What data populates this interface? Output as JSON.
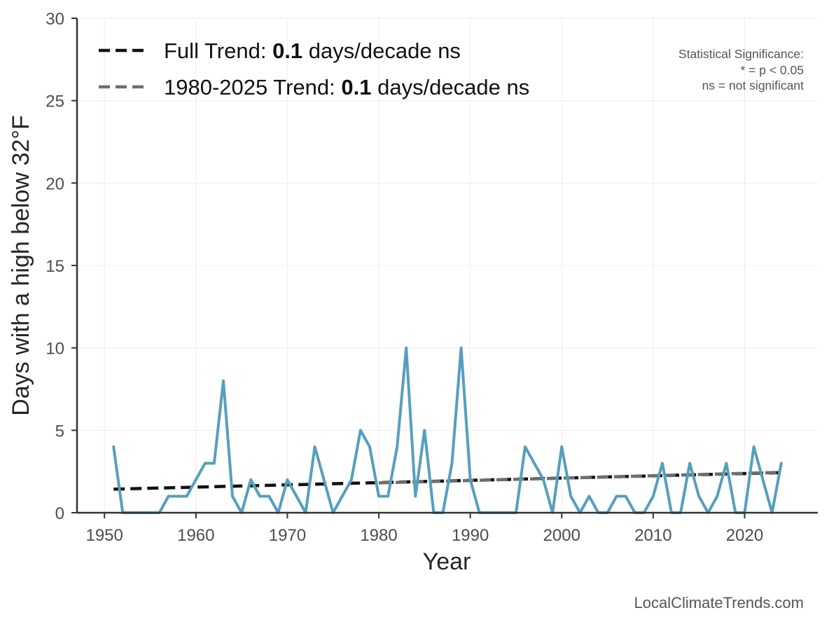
{
  "chart_data": {
    "type": "line",
    "xlabel": "Year",
    "ylabel": "Days with a high below 32°F",
    "xlim": [
      1947,
      2028
    ],
    "ylim": [
      0,
      30
    ],
    "x_ticks": [
      1950,
      1960,
      1970,
      1980,
      1990,
      2000,
      2010,
      2020
    ],
    "y_ticks": [
      0,
      5,
      10,
      15,
      20,
      25,
      30
    ],
    "grid": true,
    "series": [
      {
        "name": "Days with a high below 32°F",
        "color": "#569fbe",
        "x": [
          1951,
          1952,
          1953,
          1954,
          1955,
          1956,
          1957,
          1958,
          1959,
          1960,
          1961,
          1962,
          1963,
          1964,
          1965,
          1966,
          1967,
          1968,
          1969,
          1970,
          1971,
          1972,
          1973,
          1974,
          1975,
          1976,
          1977,
          1978,
          1979,
          1980,
          1981,
          1982,
          1983,
          1984,
          1985,
          1986,
          1987,
          1988,
          1989,
          1990,
          1991,
          1992,
          1993,
          1994,
          1995,
          1996,
          1997,
          1998,
          1999,
          2000,
          2001,
          2002,
          2003,
          2004,
          2005,
          2006,
          2007,
          2008,
          2009,
          2010,
          2011,
          2012,
          2013,
          2014,
          2015,
          2016,
          2017,
          2018,
          2019,
          2020,
          2021,
          2022,
          2023,
          2024
        ],
        "values": [
          4,
          0,
          0,
          0,
          0,
          0,
          1,
          1,
          1,
          2,
          3,
          3,
          8,
          1,
          0,
          2,
          1,
          1,
          0,
          2,
          1,
          0,
          4,
          2,
          0,
          1,
          2,
          5,
          4,
          1,
          1,
          4,
          10,
          1,
          5,
          0,
          0,
          3,
          10,
          2,
          0,
          0,
          0,
          0,
          0,
          4,
          3,
          2,
          0,
          4,
          1,
          0,
          1,
          0,
          0,
          1,
          1,
          0,
          0,
          1,
          3,
          0,
          0,
          3,
          1,
          0,
          1,
          3,
          0,
          0,
          4,
          2,
          0,
          3
        ]
      }
    ],
    "trends": [
      {
        "name": "Full Trend",
        "color": "#111111",
        "x_range": [
          1951,
          2024
        ],
        "y_range": [
          1.43,
          2.43
        ],
        "legend_prefix": "Full Trend: ",
        "legend_value": "0.1",
        "legend_suffix": " days/decade ns"
      },
      {
        "name": "1980-2025 Trend",
        "color": "#6e6e6e",
        "x_range": [
          1980,
          2024
        ],
        "y_range": [
          1.81,
          2.45
        ],
        "legend_prefix": "1980-2025 Trend: ",
        "legend_value": "0.1",
        "legend_suffix": " days/decade ns"
      }
    ],
    "significance_note": [
      "Statistical Significance:",
      "* = p < 0.05",
      "ns = not significant"
    ],
    "watermark": "LocalClimateTrends.com"
  }
}
